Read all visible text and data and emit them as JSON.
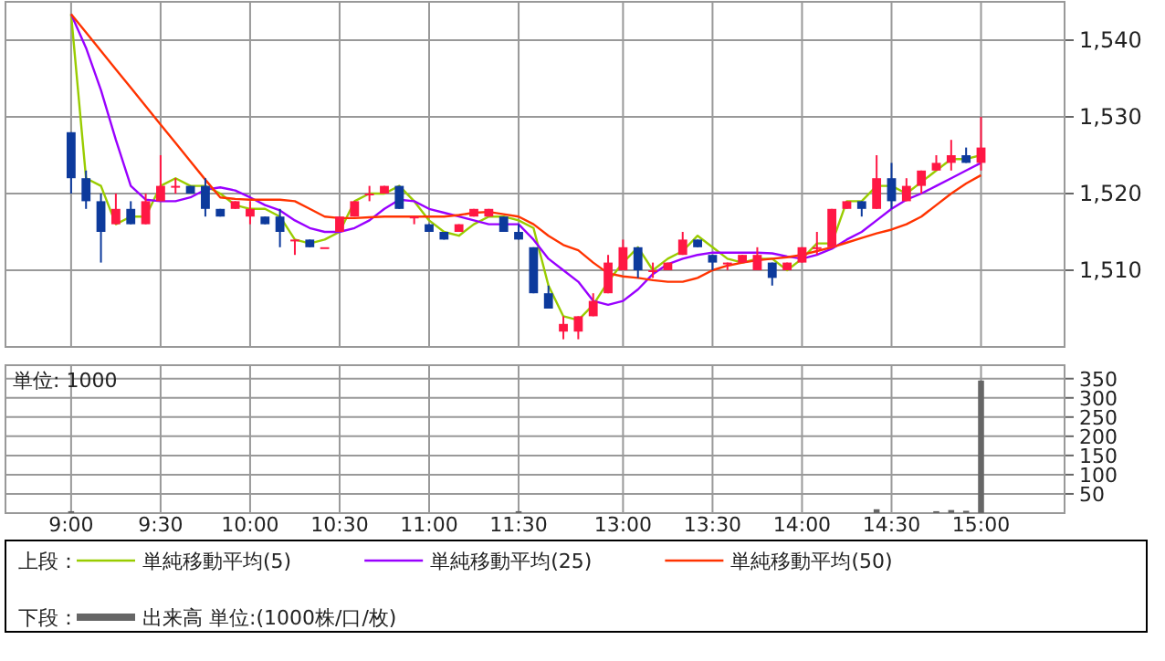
{
  "chart_data": [
    {
      "type": "candlestick",
      "legend_title": "上段：",
      "legend": "bottom",
      "grid": true,
      "tick_labels": "y",
      "categories": [
        null,
        null,
        null,
        null,
        null,
        null,
        null,
        null,
        null,
        null,
        null,
        null,
        null,
        null,
        null,
        null,
        null,
        null,
        null,
        null,
        null,
        null,
        null,
        null,
        null,
        null,
        null,
        null,
        null,
        null,
        null,
        null,
        null,
        null,
        null,
        null,
        null,
        null,
        null,
        null,
        null,
        null,
        null,
        null,
        null,
        null,
        null,
        null,
        null,
        null,
        null,
        null,
        null,
        null,
        null,
        null,
        null,
        null,
        null,
        null,
        null,
        null
      ],
      "ylim": [
        1500,
        1545
      ],
      "yticks": [
        {
          "value": 1510,
          "label": "1,510"
        },
        {
          "value": 1520,
          "label": "1,520"
        },
        {
          "value": 1530,
          "label": "1,530"
        },
        {
          "value": 1540,
          "label": "1,540"
        }
      ],
      "ohlc": [
        [
          1528,
          1528,
          1520,
          1522
        ],
        [
          1522,
          1523,
          1518,
          1519
        ],
        [
          1519,
          1520,
          1511,
          1515
        ],
        [
          1516,
          1520,
          1516,
          1518
        ],
        [
          1518,
          1519,
          1516,
          1516
        ],
        [
          1516,
          1520,
          1516,
          1519
        ],
        [
          1519,
          1525,
          1519,
          1521
        ],
        [
          1521,
          1522,
          1520,
          1521
        ],
        [
          1521,
          1521,
          1520,
          1520
        ],
        [
          1521,
          1522,
          1517,
          1518
        ],
        [
          1518,
          1518,
          1517,
          1517
        ],
        [
          1518,
          1519,
          1518,
          1519
        ],
        [
          1517,
          1519,
          1516,
          1518
        ],
        [
          1517,
          1517,
          1516,
          1516
        ],
        [
          1517,
          1518,
          1513,
          1515
        ],
        [
          1514,
          1514,
          1512,
          1514
        ],
        [
          1514,
          1514,
          1513,
          1513
        ],
        [
          1513,
          1513,
          1513,
          1513
        ],
        [
          1515,
          1517,
          1515,
          1517
        ],
        [
          1517,
          1519,
          1517,
          1519
        ],
        [
          1520,
          1521,
          1519,
          1520
        ],
        [
          1520,
          1521,
          1520,
          1521
        ],
        [
          1521,
          1521,
          1518,
          1518
        ],
        [
          1517,
          1517,
          1516,
          1517
        ],
        [
          1516,
          1516,
          1515,
          1515
        ],
        [
          1515,
          1515,
          1514,
          1514
        ],
        [
          1515,
          1516,
          1515,
          1516
        ],
        [
          1517,
          1518,
          1517,
          1518
        ],
        [
          1517,
          1518,
          1517,
          1518
        ],
        [
          1517,
          1517,
          1515,
          1515
        ],
        [
          1515,
          1516,
          1514,
          1514
        ],
        [
          1513,
          1513,
          1507,
          1507
        ],
        [
          1507,
          1508,
          1505,
          1505
        ],
        [
          1502,
          1504,
          1501,
          1503
        ],
        [
          1502,
          1504,
          1501,
          1504
        ],
        [
          1504,
          1507,
          1504,
          1506
        ],
        [
          1507,
          1512,
          1507,
          1511
        ],
        [
          1510,
          1514,
          1510,
          1513
        ],
        [
          1513,
          1513,
          1509,
          1510
        ],
        [
          1510,
          1511,
          1509,
          1510
        ],
        [
          1510,
          1511,
          1510,
          1511
        ],
        [
          1512,
          1515,
          1512,
          1514
        ],
        [
          1514,
          1514,
          1513,
          1513
        ],
        [
          1512,
          1512,
          1510,
          1511
        ],
        [
          1511,
          1511,
          1510,
          1511
        ],
        [
          1511,
          1512,
          1511,
          1512
        ],
        [
          1510,
          1513,
          1510,
          1512
        ],
        [
          1511,
          1511,
          1508,
          1509
        ],
        [
          1510,
          1511,
          1510,
          1511
        ],
        [
          1511,
          1513,
          1511,
          1513
        ],
        [
          1513,
          1515,
          1512,
          1513
        ],
        [
          1513,
          1518,
          1513,
          1518
        ],
        [
          1518,
          1519,
          1518,
          1519
        ],
        [
          1519,
          1519,
          1517,
          1518
        ],
        [
          1518,
          1525,
          1518,
          1522
        ],
        [
          1522,
          1524,
          1518,
          1519
        ],
        [
          1519,
          1522,
          1519,
          1521
        ],
        [
          1521,
          1523,
          1520,
          1523
        ],
        [
          1523,
          1525,
          1523,
          1524
        ],
        [
          1524,
          1527,
          1523,
          1525
        ],
        [
          1525,
          1526,
          1524,
          1524
        ],
        [
          1524,
          1530,
          1523,
          1526
        ]
      ],
      "series": [
        {
          "name": "単純移動平均(5)",
          "type": "line",
          "color": "#99cc00",
          "values": [
            1543.4,
            1522,
            1521,
            1516,
            1517,
            1517,
            1521,
            1522,
            1521,
            1521,
            1520,
            1518.5,
            1518,
            1518,
            1517,
            1514,
            1513.5,
            1514,
            1515,
            1519,
            1520,
            1520,
            1521,
            1519,
            1516.5,
            1515,
            1514.5,
            1516,
            1517,
            1517,
            1516.5,
            1515.5,
            1508,
            1504,
            1503.5,
            1505.5,
            1508.5,
            1511,
            1513,
            1510,
            1511.5,
            1512.5,
            1514.5,
            1513,
            1511.5,
            1511,
            1511.5,
            1511.5,
            1510,
            1511.5,
            1513.5,
            1513.5,
            1519,
            1519,
            1521,
            1521,
            1520,
            1521.5,
            1523,
            1524.5,
            1524.5,
            1525
          ]
        },
        {
          "name": "単純移動平均(25)",
          "type": "line",
          "color": "#9900ff",
          "values": [
            1543.4,
            1539,
            1533.5,
            1527,
            1521,
            1519.2,
            1519,
            1519,
            1519.5,
            1520.5,
            1520.8,
            1520.4,
            1519.5,
            1518.5,
            1517.8,
            1516.5,
            1515.5,
            1515,
            1515,
            1515.5,
            1516.5,
            1518,
            1519.2,
            1519,
            1518,
            1517.5,
            1517,
            1516.5,
            1516,
            1516,
            1516,
            1514,
            1511.5,
            1510,
            1508.5,
            1506,
            1505.5,
            1506,
            1507.5,
            1509.5,
            1510.8,
            1511.5,
            1512,
            1512.3,
            1512.3,
            1512.3,
            1512.3,
            1512.2,
            1511.8,
            1511.5,
            1512,
            1512.8,
            1514,
            1515,
            1516.5,
            1518,
            1519.2,
            1520,
            1521,
            1522,
            1523,
            1524
          ]
        },
        {
          "name": "単純移動平均(50)",
          "type": "line",
          "color": "#ff3300",
          "values": [
            1543.4,
            1541,
            1538.6,
            1536.2,
            1533.8,
            1531.4,
            1529,
            1526.6,
            1524.2,
            1521.8,
            1519.5,
            1519.3,
            1519.2,
            1519.2,
            1519.2,
            1519,
            1518,
            1517,
            1516.8,
            1516.8,
            1516.9,
            1517,
            1517,
            1517,
            1517,
            1517,
            1517.2,
            1517.5,
            1517.6,
            1517.3,
            1517,
            1516,
            1514.5,
            1513.3,
            1512.6,
            1511,
            1509.6,
            1509.2,
            1509,
            1508.7,
            1508.5,
            1508.5,
            1509,
            1510,
            1510.6,
            1511,
            1511.3,
            1511.5,
            1511.7,
            1512,
            1512.5,
            1513,
            1513.6,
            1514.2,
            1514.8,
            1515.3,
            1516,
            1517,
            1518.5,
            1520,
            1521.3,
            1522.4
          ]
        }
      ]
    },
    {
      "type": "bar",
      "legend_title": "下段：",
      "legend": "bottom",
      "grid": true,
      "annotations": [
        "単位: 1000"
      ],
      "categories": [
        "9:00",
        null,
        null,
        null,
        null,
        null,
        "9:30",
        null,
        null,
        null,
        null,
        null,
        "10:00",
        null,
        null,
        null,
        null,
        null,
        "10:30",
        null,
        null,
        null,
        null,
        null,
        "11:00",
        null,
        null,
        null,
        null,
        null,
        "11:30",
        null,
        null,
        null,
        null,
        null,
        null,
        "13:00",
        null,
        null,
        null,
        null,
        null,
        "13:30",
        null,
        null,
        null,
        null,
        null,
        "14:00",
        null,
        null,
        null,
        null,
        null,
        "14:30",
        null,
        null,
        null,
        null,
        null,
        "15:00"
      ],
      "ylim": [
        0,
        385
      ],
      "yticks": [
        50,
        100,
        150,
        200,
        250,
        300,
        350
      ],
      "series": [
        {
          "name": "出来高 単位:(1000株/口/枚)",
          "color": "#666666",
          "values": [
            5,
            0,
            0,
            0,
            0,
            0,
            0,
            0,
            0,
            0,
            0,
            0,
            0,
            0,
            0,
            0,
            0,
            0,
            0,
            0,
            0,
            0,
            0,
            0,
            0,
            0,
            0,
            0,
            0,
            0,
            5,
            0,
            0,
            0,
            0,
            0,
            0,
            0,
            0,
            0,
            0,
            0,
            0,
            0,
            0,
            0,
            0,
            0,
            0,
            0,
            0,
            0,
            0,
            0,
            10,
            0,
            0,
            0,
            5,
            8,
            6,
            345
          ]
        }
      ]
    }
  ]
}
